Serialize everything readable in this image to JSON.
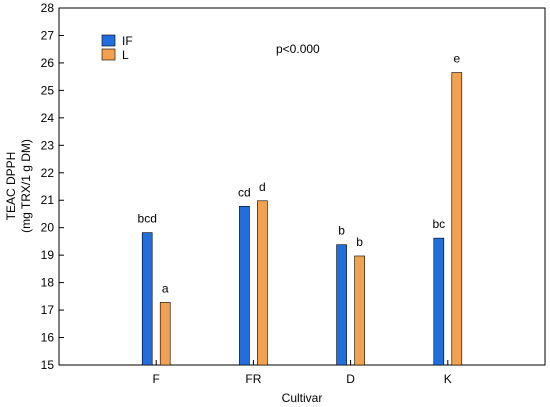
{
  "chart_data": {
    "type": "bar",
    "title": "",
    "xlabel": "Cultivar",
    "ylabel_line1": "TEAC DPPH",
    "ylabel_line2": "(mg TRX/1 g DM)",
    "ylim": [
      15,
      28
    ],
    "yticks": [
      15,
      16,
      17,
      18,
      19,
      20,
      21,
      22,
      23,
      24,
      25,
      26,
      27,
      28
    ],
    "categories": [
      "F",
      "FR",
      "D",
      "K"
    ],
    "series": [
      {
        "name": "IF",
        "color": "#1f6fe0",
        "values": [
          19.82,
          20.78,
          19.38,
          19.62
        ],
        "labels": [
          "bcd",
          "cd",
          "b",
          "bc"
        ]
      },
      {
        "name": "L",
        "color": "#f4a14d",
        "values": [
          17.28,
          20.98,
          18.97,
          25.65
        ],
        "labels": [
          "a",
          "d",
          "b",
          "e"
        ]
      }
    ],
    "annotation": "p<0.000",
    "legend_position": "top-left",
    "grid": false
  }
}
